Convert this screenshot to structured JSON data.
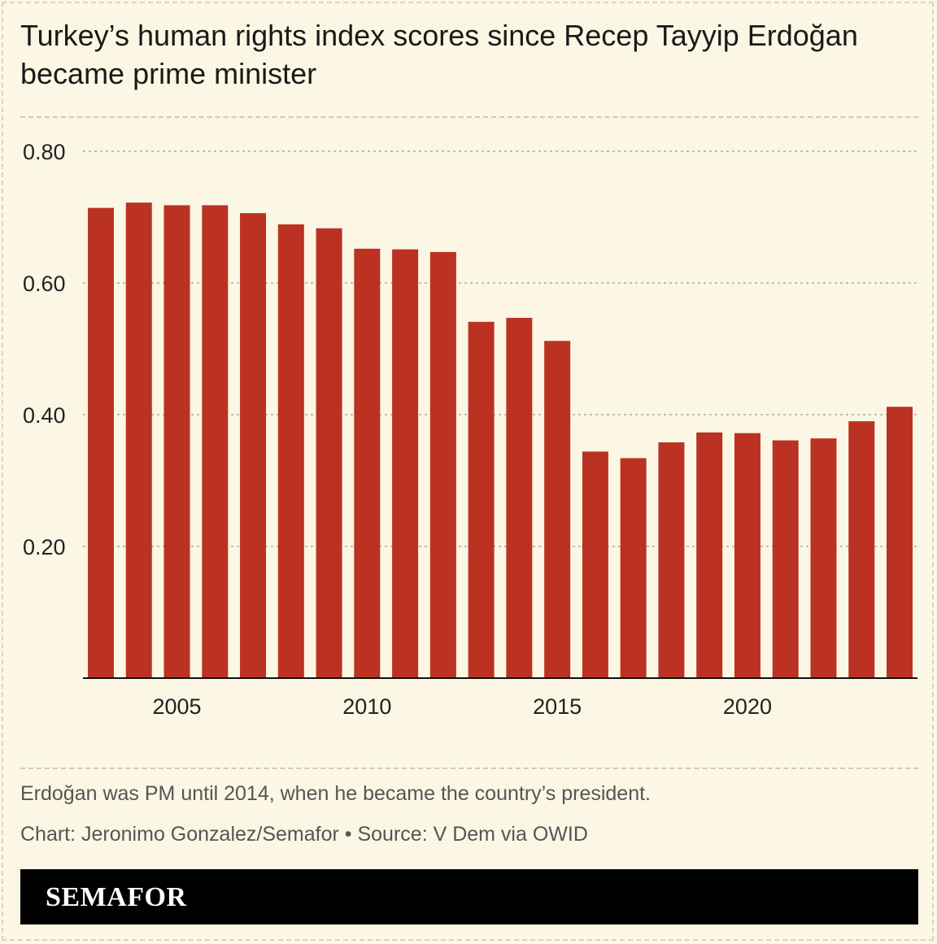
{
  "title": "Turkey’s human rights index scores since Recep Tayyip Erdoğan became prime minister",
  "note": "Erdoğan was PM until 2014, when he became the country’s president.",
  "credit": "Chart: Jeronimo Gonzalez/Semafor • Source: V Dem via OWID",
  "brand": "SEMAFOR",
  "colors": {
    "bar": "#bb3222",
    "background": "#fbf7e4",
    "grid": "#9a9a9a"
  },
  "chart_data": {
    "type": "bar",
    "x": [
      2003,
      2004,
      2005,
      2006,
      2007,
      2008,
      2009,
      2010,
      2011,
      2012,
      2013,
      2014,
      2015,
      2016,
      2017,
      2018,
      2019,
      2020,
      2021,
      2022,
      2023,
      2024
    ],
    "values": [
      0.714,
      0.722,
      0.718,
      0.718,
      0.706,
      0.689,
      0.683,
      0.652,
      0.651,
      0.647,
      0.541,
      0.547,
      0.512,
      0.344,
      0.334,
      0.358,
      0.373,
      0.372,
      0.361,
      0.364,
      0.39,
      0.412
    ],
    "ylim": [
      0,
      0.8
    ],
    "yticks": [
      "0.20",
      "0.40",
      "0.60",
      "0.80"
    ],
    "xticks": [
      "2005",
      "2010",
      "2015",
      "2020"
    ],
    "grid": true,
    "title": "Turkey’s human rights index scores since Recep Tayyip Erdoğan became prime minister",
    "xlabel": "",
    "ylabel": ""
  }
}
